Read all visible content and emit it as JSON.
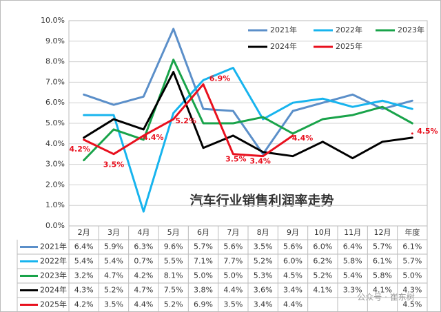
{
  "chart_data": {
    "type": "line",
    "title": "汽车行业销售利润率走势",
    "categories": [
      "2月",
      "3月",
      "4月",
      "5月",
      "6月",
      "7月",
      "8月",
      "9月",
      "10月",
      "11月",
      "12月",
      "年度"
    ],
    "ylim": [
      0,
      10
    ],
    "yticks": [
      {
        "value": 0,
        "label": "0.0%"
      },
      {
        "value": 1,
        "label": "1.0%"
      },
      {
        "value": 2,
        "label": "2.0%"
      },
      {
        "value": 3,
        "label": "3.0%"
      },
      {
        "value": 4,
        "label": "4.0%"
      },
      {
        "value": 5,
        "label": "5.0%"
      },
      {
        "value": 6,
        "label": "6.0%"
      },
      {
        "value": 7,
        "label": "7.0%"
      },
      {
        "value": 8,
        "label": "8.0%"
      },
      {
        "value": 9,
        "label": "9.0%"
      },
      {
        "value": 10,
        "label": "10.0%"
      }
    ],
    "grid": true,
    "series": [
      {
        "name": "2021年",
        "color": "#5b8fc9",
        "values": [
          6.4,
          5.9,
          6.3,
          9.6,
          5.7,
          5.6,
          3.5,
          5.6,
          6.0,
          6.4,
          5.7,
          6.1
        ],
        "value_labels": [
          "6.4%",
          "5.9%",
          "6.3%",
          "9.6%",
          "5.7%",
          "5.6%",
          "3.5%",
          "5.6%",
          "6.0%",
          "6.4%",
          "5.7%",
          "6.1%"
        ]
      },
      {
        "name": "2022年",
        "color": "#17b4ee",
        "values": [
          5.4,
          5.4,
          0.7,
          5.5,
          7.1,
          7.7,
          5.2,
          6.0,
          6.2,
          5.8,
          6.1,
          5.7
        ],
        "value_labels": [
          "5.4%",
          "5.4%",
          "0.7%",
          "5.5%",
          "7.1%",
          "7.7%",
          "5.2%",
          "6.0%",
          "6.2%",
          "5.8%",
          "6.1%",
          "5.7%"
        ]
      },
      {
        "name": "2023年",
        "color": "#19a34a",
        "values": [
          3.2,
          4.7,
          4.2,
          8.1,
          5.0,
          5.0,
          5.3,
          4.5,
          5.2,
          5.4,
          5.8,
          5.0
        ],
        "value_labels": [
          "3.2%",
          "4.7%",
          "4.2%",
          "8.1%",
          "5.0%",
          "5.0%",
          "5.3%",
          "4.5%",
          "5.2%",
          "5.4%",
          "5.8%",
          "5.0%"
        ]
      },
      {
        "name": "2024年",
        "color": "#000000",
        "values": [
          4.3,
          5.2,
          4.7,
          7.5,
          3.8,
          4.4,
          3.6,
          3.4,
          4.1,
          3.3,
          4.1,
          4.3
        ],
        "value_labels": [
          "4.3%",
          "5.2%",
          "4.7%",
          "7.5%",
          "3.8%",
          "4.4%",
          "3.6%",
          "3.4%",
          "4.1%",
          "3.3%",
          "4.1%",
          "4.3%"
        ]
      },
      {
        "name": "2025年",
        "color": "#e8101e",
        "values": [
          4.2,
          3.5,
          4.4,
          5.2,
          6.9,
          3.5,
          3.4,
          4.4,
          null,
          null,
          null,
          4.5
        ],
        "value_labels": [
          "4.2%",
          "3.5%",
          "4.4%",
          "5.2%",
          "6.9%",
          "3.5%",
          "3.4%",
          "4.4%",
          null,
          null,
          null,
          "4.5%"
        ],
        "data_labels": true
      }
    ],
    "watermark": "公众号 · 崔东树"
  }
}
